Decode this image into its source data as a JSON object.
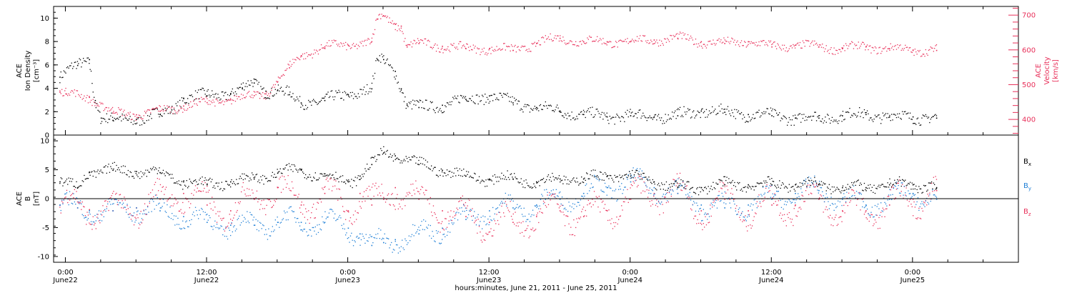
{
  "xaxis": {
    "title": "hours:minutes, June 21, 2011 - June 25, 2011",
    "ticks": [
      {
        "time": "0:00",
        "date": "June22",
        "h": 0
      },
      {
        "time": "12:00",
        "date": "June22",
        "h": 12
      },
      {
        "time": "0:00",
        "date": "June23",
        "h": 24
      },
      {
        "time": "12:00",
        "date": "June23",
        "h": 36
      },
      {
        "time": "0:00",
        "date": "June24",
        "h": 48
      },
      {
        "time": "12:00",
        "date": "June24",
        "h": 60
      },
      {
        "time": "0:00",
        "date": "June25",
        "h": 72
      }
    ]
  },
  "colors": {
    "black": "#000000",
    "red": "#e8305a",
    "blue": "#1f7fd6"
  },
  "chart_data": [
    {
      "type": "scatter",
      "panel": "plasma",
      "xlim": [
        -1,
        81
      ],
      "left_axis": {
        "label_lines": [
          "ACE",
          "Ion Density",
          "[cm⁻³]"
        ],
        "ylim": [
          0,
          11
        ],
        "ticks": [
          0,
          2,
          4,
          6,
          8,
          10
        ]
      },
      "right_axis": {
        "label_lines": [
          "ACE",
          "Velocity",
          "[km/s]"
        ],
        "ylim": [
          355,
          725
        ],
        "ticks": [
          400,
          500,
          600,
          700
        ]
      },
      "series": [
        {
          "axis": "left",
          "color": "#000000",
          "x": [
            -0.5,
            1,
            2,
            2.5,
            3,
            4,
            6,
            8,
            9,
            10,
            12,
            14,
            15,
            16,
            17,
            18,
            19,
            20,
            22,
            24,
            26,
            26.5,
            27,
            28,
            28.5,
            29,
            30,
            32,
            34,
            36,
            38,
            40,
            42,
            44,
            46,
            48,
            50,
            52,
            54,
            56,
            58,
            60,
            62,
            64,
            66,
            68,
            70,
            72,
            74
          ],
          "y": [
            5,
            6,
            6.5,
            3,
            1.5,
            1.3,
            1.4,
            1.8,
            2.2,
            3.2,
            3.4,
            3.6,
            4,
            4.5,
            3.8,
            3.9,
            3.5,
            2.8,
            3,
            3.5,
            4,
            6.5,
            6.5,
            5.5,
            4,
            2.6,
            2.4,
            2.6,
            3.1,
            3.4,
            2.8,
            2.4,
            2.1,
            1.8,
            1.6,
            1.7,
            1.6,
            1.7,
            2.1,
            2,
            1.8,
            1.7,
            1.5,
            1.5,
            1.7,
            1.8,
            1.6,
            1.6,
            1.5
          ]
        },
        {
          "axis": "right",
          "color": "#e8305a",
          "x": [
            -0.5,
            0,
            2,
            4,
            6,
            8,
            10,
            12,
            14,
            16,
            17,
            18,
            19,
            20,
            22,
            24,
            26,
            26.5,
            27,
            28,
            28.5,
            29,
            30,
            32,
            34,
            36,
            38,
            40,
            42,
            44,
            46,
            48,
            50,
            52,
            54,
            56,
            58,
            60,
            62,
            64,
            66,
            68,
            70,
            72,
            74
          ],
          "y": [
            480,
            475,
            465,
            420,
            415,
            425,
            440,
            450,
            458,
            470,
            475,
            510,
            550,
            585,
            610,
            615,
            625,
            690,
            700,
            675,
            670,
            610,
            620,
            612,
            605,
            605,
            600,
            620,
            635,
            625,
            625,
            625,
            630,
            635,
            625,
            620,
            625,
            610,
            615,
            610,
            605,
            610,
            605,
            600,
            600
          ]
        }
      ]
    },
    {
      "type": "scatter",
      "panel": "magnetic",
      "xlim": [
        -1,
        81
      ],
      "left_axis": {
        "label_lines": [
          "ACE",
          "B",
          "[nT]"
        ],
        "ylim": [
          -11,
          11
        ],
        "ticks": [
          -10,
          -5,
          0,
          5,
          10
        ]
      },
      "legend": [
        {
          "text": "B",
          "sub": "x",
          "color": "#000000"
        },
        {
          "text": "B",
          "sub": "y",
          "color": "#1f7fd6"
        },
        {
          "text": "B",
          "sub": "z",
          "color": "#e8305a"
        }
      ],
      "series": [
        {
          "name": "Bx",
          "color": "#000000",
          "x": [
            -0.5,
            1,
            2,
            4,
            6,
            8,
            10,
            12,
            14,
            16,
            18,
            20,
            22,
            24,
            25,
            26,
            27,
            28,
            30,
            32,
            34,
            36,
            38,
            40,
            42,
            44,
            46,
            48,
            50,
            52,
            54,
            56,
            58,
            60,
            62,
            64,
            66,
            68,
            70,
            72,
            74
          ],
          "y": [
            3,
            2,
            4.7,
            5,
            4.8,
            4.6,
            3,
            2.5,
            3,
            3.5,
            4.5,
            5,
            4,
            3,
            4,
            6,
            8,
            7.5,
            6,
            5,
            4,
            3.5,
            3.5,
            3,
            3.5,
            3.5,
            4,
            4,
            3,
            2,
            2,
            2.5,
            2.5,
            2.5,
            2.5,
            2.5,
            2,
            2,
            2.5,
            2.5,
            2
          ]
        },
        {
          "name": "By",
          "color": "#1f7fd6",
          "x": [
            -0.5,
            1,
            2,
            4,
            6,
            8,
            10,
            12,
            14,
            16,
            18,
            20,
            22,
            24,
            25,
            26,
            27,
            28,
            30,
            32,
            34,
            36,
            38,
            40,
            42,
            44,
            46,
            48,
            50,
            52,
            54,
            56,
            58,
            60,
            62,
            64,
            66,
            68,
            70,
            72,
            74
          ],
          "y": [
            -1,
            -1.5,
            -2,
            -2,
            -1.5,
            -2,
            -3,
            -4,
            -4.5,
            -4.5,
            -4,
            -4,
            -4,
            -5,
            -6,
            -8,
            -7.5,
            -7,
            -6,
            -5,
            -3.5,
            -2,
            -1.5,
            -1,
            0,
            1,
            2,
            3,
            2,
            1,
            -1,
            -1.5,
            -1,
            0,
            1,
            1.5,
            0,
            -1,
            0,
            1,
            0
          ]
        },
        {
          "name": "Bz",
          "color": "#e8305a",
          "x": [
            -0.5,
            1,
            2,
            4,
            6,
            8,
            10,
            12,
            14,
            16,
            18,
            20,
            22,
            24,
            25,
            26,
            27,
            28,
            30,
            32,
            34,
            36,
            38,
            40,
            42,
            44,
            46,
            48,
            50,
            52,
            54,
            56,
            58,
            60,
            62,
            64,
            66,
            68,
            70,
            72,
            74
          ],
          "y": [
            -1,
            -1.5,
            -1.8,
            -2,
            -1.5,
            0,
            1,
            -1,
            -2,
            0,
            2,
            -1,
            1,
            -2,
            1,
            -1,
            0,
            2,
            0,
            -2,
            -3,
            -4,
            -4,
            -3,
            -2,
            -3,
            -2,
            0,
            1,
            1,
            -2,
            0,
            -2,
            -1,
            -1,
            0,
            -2,
            -2,
            -1,
            0,
            1.5
          ]
        }
      ]
    }
  ]
}
